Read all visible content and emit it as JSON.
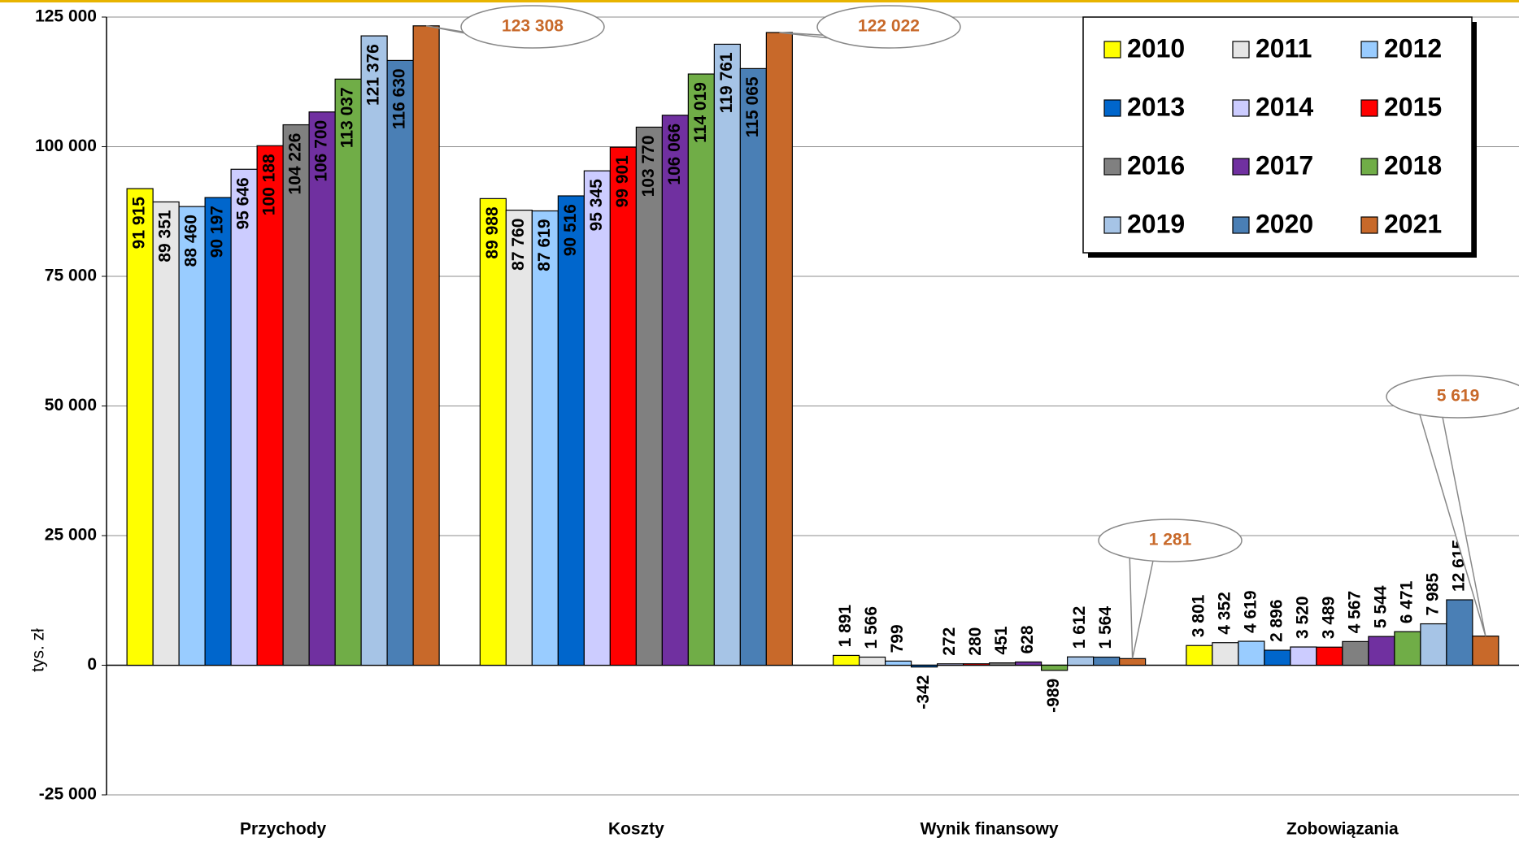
{
  "chart_data": {
    "type": "bar",
    "y_label": "tys. zł",
    "categories": [
      "Przychody",
      "Koszty",
      "Wynik finansowy",
      "Zobowiązania"
    ],
    "series": [
      {
        "name": "2010",
        "color": "#ffff00",
        "values": [
          91915,
          89988,
          1891,
          3801
        ],
        "value_labels": [
          "91 915",
          "89 988",
          "1 891",
          "3 801"
        ]
      },
      {
        "name": "2011",
        "color": "#e6e6e6",
        "values": [
          89351,
          87760,
          1566,
          4352
        ],
        "value_labels": [
          "89 351",
          "87 760",
          "1 566",
          "4 352"
        ]
      },
      {
        "name": "2012",
        "color": "#99ccff",
        "values": [
          88460,
          87619,
          799,
          4619
        ],
        "value_labels": [
          "88 460",
          "87 619",
          "799",
          "4 619"
        ]
      },
      {
        "name": "2013",
        "color": "#0066cc",
        "values": [
          90197,
          90516,
          -342,
          2896
        ],
        "value_labels": [
          "90 197",
          "90 516",
          "-342",
          "2 896"
        ]
      },
      {
        "name": "2014",
        "color": "#ccccff",
        "values": [
          95646,
          95345,
          272,
          3520
        ],
        "value_labels": [
          "95 646",
          "95 345",
          "272",
          "3 520"
        ]
      },
      {
        "name": "2015",
        "color": "#ff0000",
        "values": [
          100188,
          99901,
          280,
          3489
        ],
        "value_labels": [
          "100 188",
          "99 901",
          "280",
          "3 489"
        ]
      },
      {
        "name": "2016",
        "color": "#808080",
        "values": [
          104226,
          103770,
          451,
          4567
        ],
        "value_labels": [
          "104 226",
          "103 770",
          "451",
          "4 567"
        ]
      },
      {
        "name": "2017",
        "color": "#7030a0",
        "values": [
          106700,
          106066,
          628,
          5544
        ],
        "value_labels": [
          "106 700",
          "106 066",
          "628",
          "5 544"
        ]
      },
      {
        "name": "2018",
        "color": "#70ad47",
        "values": [
          113037,
          114019,
          -989,
          6471
        ],
        "value_labels": [
          "113 037",
          "114 019",
          "-989",
          "6 471"
        ]
      },
      {
        "name": "2019",
        "color": "#a6c4e6",
        "values": [
          121376,
          119761,
          1612,
          7985
        ],
        "value_labels": [
          "121 376",
          "119 761",
          "1 612",
          "7 985"
        ]
      },
      {
        "name": "2020",
        "color": "#4a7fb5",
        "values": [
          116630,
          115065,
          1564,
          12615
        ],
        "value_labels": [
          "116 630",
          "115 065",
          "1 564",
          "12 615"
        ]
      },
      {
        "name": "2021",
        "color": "#c8692a",
        "values": [
          123308,
          122022,
          1281,
          5619
        ],
        "value_labels": [
          "123 308",
          "122 022",
          "1 281",
          "5 619"
        ]
      }
    ],
    "ylim": [
      -25000,
      125000
    ],
    "yticks": [
      {
        "value": -25000,
        "label": "-25 000"
      },
      0,
      {
        "value": 25000,
        "label": "25 000"
      },
      {
        "value": 50000,
        "label": "50 000"
      },
      {
        "value": 75000,
        "label": "75 000"
      },
      {
        "value": 100000,
        "label": "100 000"
      },
      {
        "value": 125000,
        "label": "125 000"
      }
    ],
    "grid": true,
    "legend": "upper right"
  }
}
